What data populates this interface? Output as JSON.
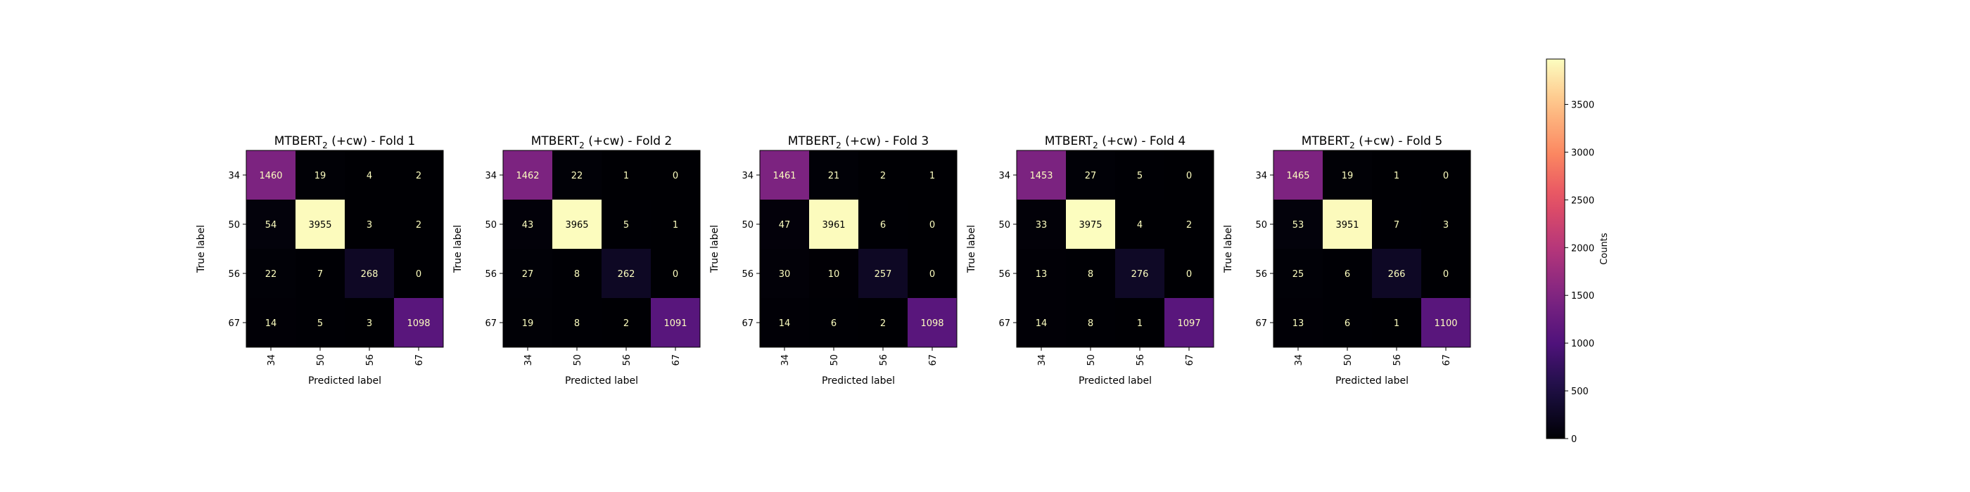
{
  "chart_data": {
    "type": "heatmap",
    "colormap": "magma",
    "vmin": 0,
    "vmax": 3975,
    "colorbar": {
      "label": "Counts",
      "ticks": [
        0,
        500,
        1000,
        1500,
        2000,
        2500,
        3000,
        3500
      ]
    },
    "panels": [
      {
        "title_prefix": "MTBERT",
        "title_sub": "2",
        "title_suffix": " (+cw) - Fold 1",
        "xlabel": "Predicted label",
        "ylabel": "True label",
        "x_labels": [
          "34",
          "50",
          "56",
          "67"
        ],
        "y_labels": [
          "34",
          "50",
          "56",
          "67"
        ],
        "matrix": [
          [
            1460,
            19,
            4,
            2
          ],
          [
            54,
            3955,
            3,
            2
          ],
          [
            22,
            7,
            268,
            0
          ],
          [
            14,
            5,
            3,
            1098
          ]
        ]
      },
      {
        "title_prefix": "MTBERT",
        "title_sub": "2",
        "title_suffix": " (+cw) - Fold 2",
        "xlabel": "Predicted label",
        "ylabel": "True label",
        "x_labels": [
          "34",
          "50",
          "56",
          "67"
        ],
        "y_labels": [
          "34",
          "50",
          "56",
          "67"
        ],
        "matrix": [
          [
            1462,
            22,
            1,
            0
          ],
          [
            43,
            3965,
            5,
            1
          ],
          [
            27,
            8,
            262,
            0
          ],
          [
            19,
            8,
            2,
            1091
          ]
        ]
      },
      {
        "title_prefix": "MTBERT",
        "title_sub": "2",
        "title_suffix": " (+cw) - Fold 3",
        "xlabel": "Predicted label",
        "ylabel": "True label",
        "x_labels": [
          "34",
          "50",
          "56",
          "67"
        ],
        "y_labels": [
          "34",
          "50",
          "56",
          "67"
        ],
        "matrix": [
          [
            1461,
            21,
            2,
            1
          ],
          [
            47,
            3961,
            6,
            0
          ],
          [
            30,
            10,
            257,
            0
          ],
          [
            14,
            6,
            2,
            1098
          ]
        ]
      },
      {
        "title_prefix": "MTBERT",
        "title_sub": "2",
        "title_suffix": " (+cw) - Fold 4",
        "xlabel": "Predicted label",
        "ylabel": "True label",
        "x_labels": [
          "34",
          "50",
          "56",
          "67"
        ],
        "y_labels": [
          "34",
          "50",
          "56",
          "67"
        ],
        "matrix": [
          [
            1453,
            27,
            5,
            0
          ],
          [
            33,
            3975,
            4,
            2
          ],
          [
            13,
            8,
            276,
            0
          ],
          [
            14,
            8,
            1,
            1097
          ]
        ]
      },
      {
        "title_prefix": "MTBERT",
        "title_sub": "2",
        "title_suffix": " (+cw) - Fold 5",
        "xlabel": "Predicted label",
        "ylabel": "True label",
        "x_labels": [
          "34",
          "50",
          "56",
          "67"
        ],
        "y_labels": [
          "34",
          "50",
          "56",
          "67"
        ],
        "matrix": [
          [
            1465,
            19,
            1,
            0
          ],
          [
            53,
            3951,
            7,
            3
          ],
          [
            25,
            6,
            266,
            0
          ],
          [
            13,
            6,
            1,
            1100
          ]
        ]
      }
    ]
  }
}
